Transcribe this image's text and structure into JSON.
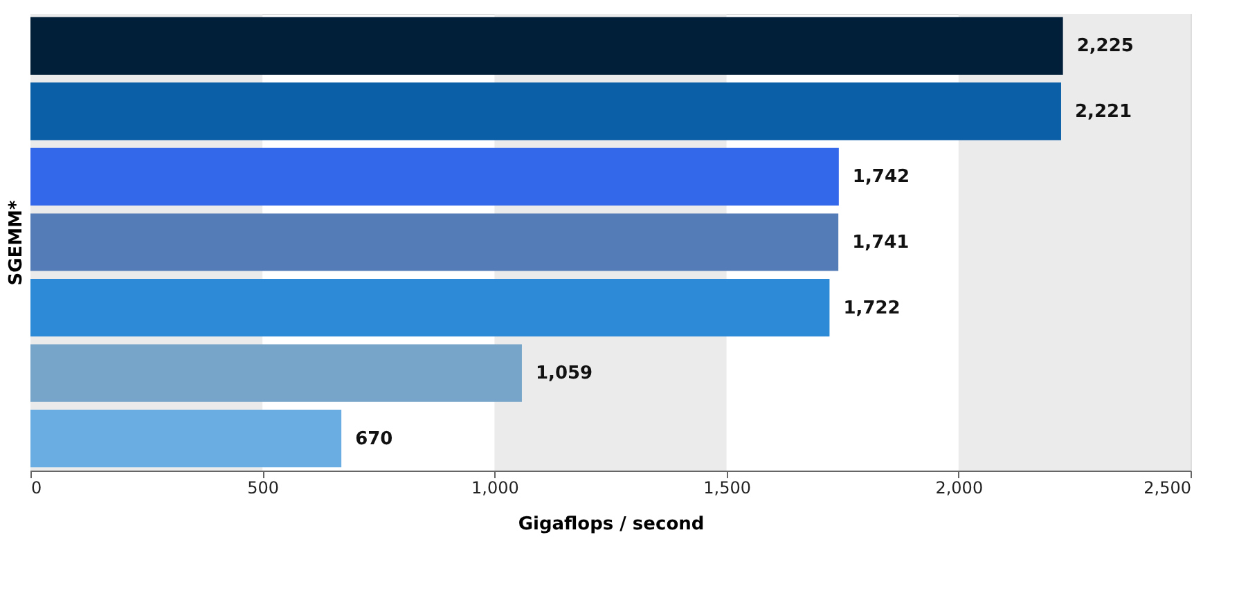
{
  "chart_data": {
    "type": "bar",
    "orientation": "horizontal",
    "ylabel": "SGEMM*",
    "xlabel": "Gigaflops / second",
    "categories": [
      null,
      null,
      null,
      null,
      null,
      null,
      null
    ],
    "values": [
      2225,
      2221,
      1742,
      1741,
      1722,
      1059,
      670
    ],
    "colors": [
      "#021f3a",
      "#0a5fa7",
      "#3468ea",
      "#547db7",
      "#2d8ad7",
      "#77a5c9",
      "#6aade3"
    ],
    "xlim": [
      0,
      2500
    ],
    "xticks": [
      0,
      500,
      {
        "value": 1000,
        "label": "1,000"
      },
      {
        "value": 1500,
        "label": "1,500"
      },
      {
        "value": 2000,
        "label": "2,000"
      },
      {
        "value": 2500,
        "label": "2,500"
      }
    ],
    "bands": [
      {
        "axis": "x",
        "from": 0,
        "to": 500,
        "color": "#ebebeb"
      },
      {
        "axis": "x",
        "from": 1000,
        "to": 1500,
        "color": "#ebebeb"
      },
      {
        "axis": "x",
        "from": 2000,
        "to": 2500,
        "color": "#ebebeb"
      }
    ],
    "value_labels": [
      "2,225",
      "2,221",
      "1,742",
      "1,741",
      "1,722",
      "1,059",
      "670"
    ],
    "grid": false
  }
}
